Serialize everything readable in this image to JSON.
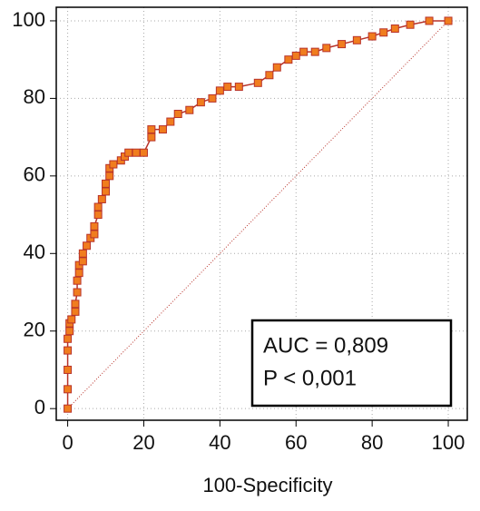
{
  "chart_data": {
    "type": "roc",
    "x_label": "100-Specificity",
    "annotations": [
      "AUC = 0,809",
      "P < 0,001"
    ],
    "xlim": [
      -3,
      105
    ],
    "ylim": [
      -3,
      103.5
    ],
    "xticks": [
      0,
      20,
      40,
      60,
      80,
      100
    ],
    "yticks": [
      0,
      20,
      40,
      60,
      80,
      100
    ],
    "grid": true,
    "reference_line": true,
    "series": [
      {
        "color": "#f07d1e",
        "edge_color": "#b8322a",
        "x": [
          0,
          0,
          0,
          0,
          0,
          0.5,
          0.5,
          1,
          2,
          2,
          2.5,
          2.5,
          3,
          3,
          4,
          4,
          5,
          6,
          7,
          7,
          8,
          8,
          9,
          10,
          10,
          11,
          11,
          12,
          14,
          15,
          16,
          18,
          20,
          22,
          22,
          25,
          27,
          29,
          32,
          35,
          38,
          40,
          42,
          45,
          50,
          53,
          55,
          58,
          60,
          62,
          65,
          68,
          72,
          76,
          80,
          83,
          86,
          90,
          95,
          100
        ],
        "values": [
          0,
          5,
          10,
          15,
          18,
          20,
          22,
          23,
          25,
          27,
          30,
          33,
          35,
          37,
          38,
          40,
          42,
          44,
          45,
          47,
          50,
          52,
          54,
          56,
          58,
          60,
          62,
          63,
          64,
          65,
          66,
          66,
          66,
          70,
          72,
          72,
          74,
          76,
          77,
          79,
          80,
          82,
          83,
          83,
          84,
          86,
          88,
          90,
          91,
          92,
          92,
          93,
          94,
          95,
          96,
          97,
          98,
          99,
          100,
          100
        ]
      }
    ]
  }
}
